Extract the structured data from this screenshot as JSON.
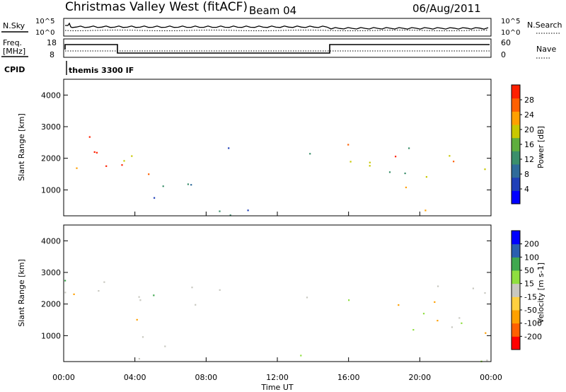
{
  "header": {
    "station": "Christmas Valley West (fitACF)",
    "beam": "Beam 04",
    "date": "06/Aug/2011"
  },
  "params": {
    "nsky_label": "N.Sky",
    "nsearch_label": "N.Search",
    "freq_label_1": "Freq.",
    "freq_label_2": "[MHz]",
    "nave_label": "Nave",
    "cpid_label": "CPID",
    "cpid_value": "themis 3300 IF",
    "noise_ticks": [
      "10^5",
      "10^0"
    ],
    "freq_ticks": [
      "18",
      "8"
    ],
    "nave_ticks": [
      "60",
      "0"
    ]
  },
  "chart_data": [
    {
      "type": "heatmap",
      "ylabel": "Slant Range [km]",
      "ylim": [
        180,
        4500
      ],
      "yticks": [
        1000,
        2000,
        3000,
        4000
      ],
      "colorbar": {
        "label": "Power [dB]",
        "range": [
          0,
          32
        ],
        "ticks": [
          "4",
          "8",
          "12",
          "16",
          "20",
          "24",
          "28"
        ],
        "colors": [
          "#0000ff",
          "#1f3fb8",
          "#2f6b9a",
          "#3b8f6b",
          "#5fae3e",
          "#c8c800",
          "#ffa000",
          "#ff6000",
          "#ff2000"
        ]
      }
    },
    {
      "type": "heatmap",
      "xlabel": "Time UT",
      "ylabel": "Slant Range [km]",
      "ylim": [
        180,
        4500
      ],
      "yticks": [
        1000,
        2000,
        3000,
        4000
      ],
      "xticks": [
        "00:00",
        "04:00",
        "08:00",
        "12:00",
        "16:00",
        "20:00",
        "00:00"
      ],
      "colorbar": {
        "label": "Velocity [m s-1]",
        "range": [
          -250,
          250
        ],
        "ticks": [
          "200",
          "100",
          "50",
          "15",
          "-15",
          "-50",
          "-100",
          "-200"
        ],
        "colors": [
          "#ff0000",
          "#ff6000",
          "#ffa000",
          "#ffd040",
          "#c8c8c0",
          "#8fdf3f",
          "#3fa84f",
          "#2a5fb0",
          "#0000ff"
        ]
      }
    }
  ]
}
